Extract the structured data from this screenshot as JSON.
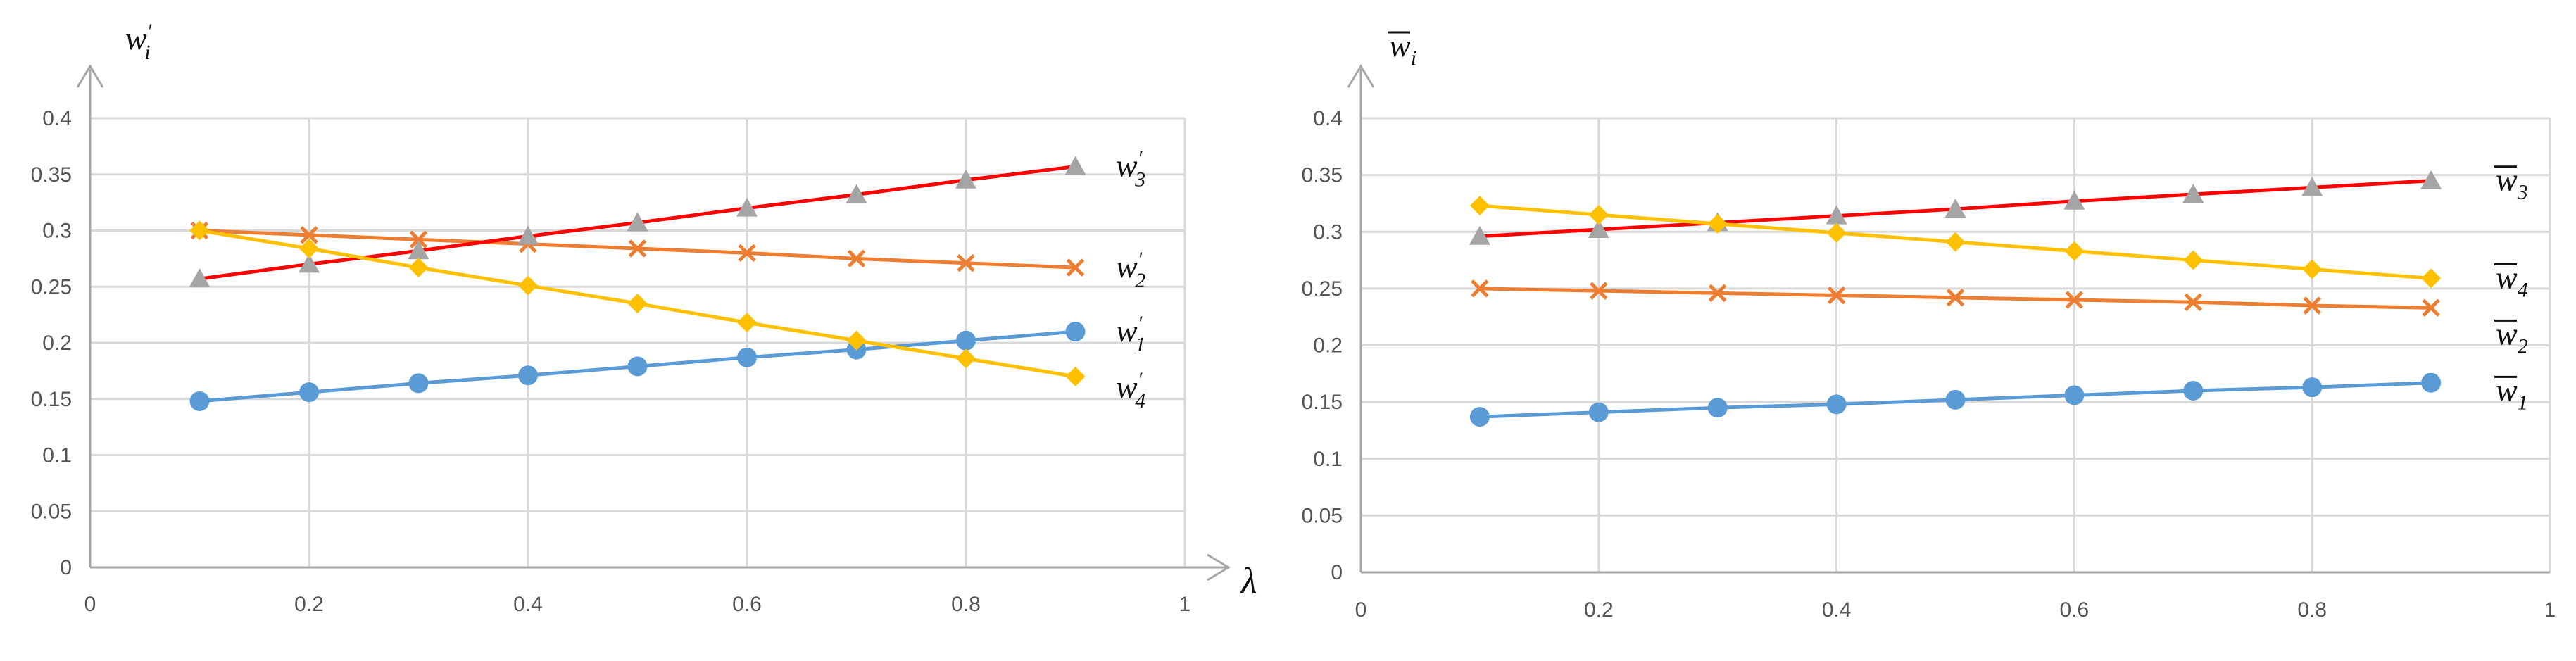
{
  "chart_data": [
    {
      "type": "line",
      "title": "",
      "ylabel": {
        "base": "w",
        "sup": "′",
        "sub": "i"
      },
      "xlabel": "λ",
      "xlim": [
        0,
        1
      ],
      "ylim": [
        0,
        0.4
      ],
      "xticks": [
        "0",
        "0.2",
        "0.4",
        "0.6",
        "0.8",
        "1"
      ],
      "yticks": [
        "0",
        "0.05",
        "0.1",
        "0.15",
        "0.2",
        "0.25",
        "0.3",
        "0.35",
        "0.4"
      ],
      "grid": true,
      "x": [
        0.1,
        0.2,
        0.3,
        0.4,
        0.5,
        0.6,
        0.7,
        0.8,
        0.9
      ],
      "series": [
        {
          "name": "w1",
          "label": {
            "base": "w",
            "sup": "′",
            "sub": "1"
          },
          "marker": "circle",
          "color": "#5B9BD5",
          "values": [
            0.148,
            0.156,
            0.164,
            0.171,
            0.179,
            0.187,
            0.194,
            0.202,
            0.21
          ]
        },
        {
          "name": "w2",
          "label": {
            "base": "w",
            "sup": "′",
            "sub": "2"
          },
          "marker": "x",
          "color": "#ED7D31",
          "values": [
            0.3,
            0.296,
            0.292,
            0.288,
            0.284,
            0.28,
            0.275,
            0.271,
            0.267
          ]
        },
        {
          "name": "w3",
          "label": {
            "base": "w",
            "sup": "′",
            "sub": "3"
          },
          "marker": "triangle",
          "color": "#A5A5A5",
          "line_color": "#FF0000",
          "values": [
            0.257,
            0.27,
            0.282,
            0.295,
            0.307,
            0.32,
            0.332,
            0.345,
            0.357
          ]
        },
        {
          "name": "w4",
          "label": {
            "base": "w",
            "sup": "′",
            "sub": "4"
          },
          "marker": "diamond",
          "color": "#FFC000",
          "values": [
            0.3,
            0.284,
            0.267,
            0.251,
            0.235,
            0.218,
            0.202,
            0.186,
            0.17
          ]
        }
      ],
      "label_order": [
        "w3",
        "w2",
        "w1",
        "w4"
      ]
    },
    {
      "type": "line",
      "title": "",
      "ylabel": {
        "base": "w",
        "overline": true,
        "sub": "i"
      },
      "xlabel": "",
      "xlim": [
        0,
        1
      ],
      "ylim": [
        0,
        0.4
      ],
      "xticks": [
        "0",
        "0.2",
        "0.4",
        "0.6",
        "0.8",
        "1"
      ],
      "yticks": [
        "0",
        "0.05",
        "0.1",
        "0.15",
        "0.2",
        "0.25",
        "0.3",
        "0.35",
        "0.4"
      ],
      "grid": true,
      "x": [
        0.1,
        0.2,
        0.3,
        0.4,
        0.5,
        0.6,
        0.7,
        0.8,
        0.9
      ],
      "series": [
        {
          "name": "w1",
          "label": {
            "base": "w",
            "overline": true,
            "sub": "1"
          },
          "marker": "circle",
          "color": "#5B9BD5",
          "values": [
            0.137,
            0.141,
            0.145,
            0.148,
            0.152,
            0.156,
            0.16,
            0.163,
            0.167
          ]
        },
        {
          "name": "w2",
          "label": {
            "base": "w",
            "overline": true,
            "sub": "2"
          },
          "marker": "x",
          "color": "#ED7D31",
          "values": [
            0.25,
            0.248,
            0.246,
            0.244,
            0.242,
            0.24,
            0.238,
            0.235,
            0.233
          ]
        },
        {
          "name": "w3",
          "label": {
            "base": "w",
            "overline": true,
            "sub": "3"
          },
          "marker": "triangle",
          "color": "#A5A5A5",
          "line_color": "#FF0000",
          "values": [
            0.296,
            0.302,
            0.308,
            0.314,
            0.32,
            0.327,
            0.333,
            0.339,
            0.345
          ]
        },
        {
          "name": "w4",
          "label": {
            "base": "w",
            "overline": true,
            "sub": "4"
          },
          "marker": "diamond",
          "color": "#FFC000",
          "values": [
            0.323,
            0.315,
            0.307,
            0.299,
            0.291,
            0.283,
            0.275,
            0.267,
            0.259
          ]
        }
      ],
      "label_order": [
        "w3",
        "w4",
        "w2",
        "w1"
      ]
    }
  ]
}
